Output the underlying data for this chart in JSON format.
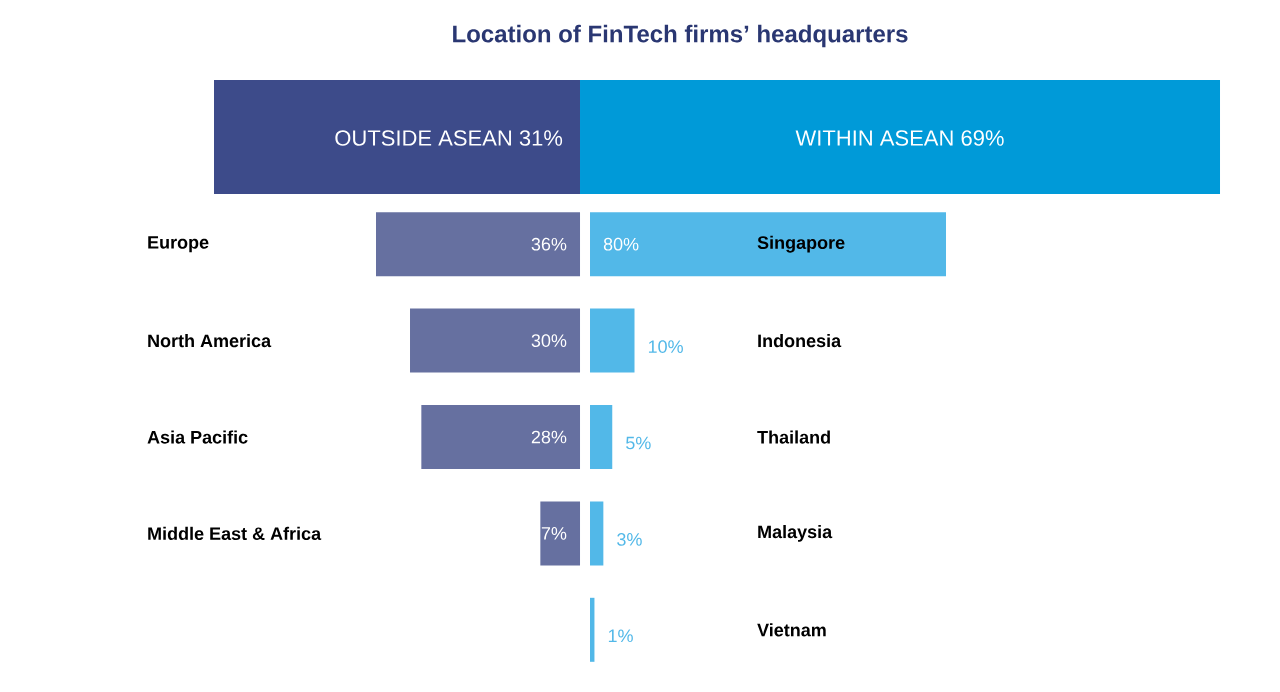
{
  "chart_data": [
    {
      "type": "other",
      "title": "Location of FinTech firms’ headquarters",
      "annotations": [
        "OUTSIDE ASEAN 31%",
        "WITHIN ASEAN 69%"
      ],
      "colors": [
        "#3d4b8a",
        "#009ad8"
      ]
    },
    {
      "type": "bar",
      "orientation": "horizontal",
      "categories": [
        "Europe",
        "North America",
        "Asia Pacific",
        "Middle East & Africa"
      ],
      "values": [
        36,
        30,
        28,
        7
      ],
      "value_labels": [
        "36%",
        "30%",
        "28%",
        "7%"
      ],
      "color": "#6670a0"
    },
    {
      "type": "bar",
      "orientation": "horizontal",
      "categories": [
        "Singapore",
        "Indonesia",
        "Thailand",
        "Malaysia",
        "Vietnam"
      ],
      "values": [
        80,
        10,
        5,
        3,
        1
      ],
      "value_labels": [
        "80%",
        "10%",
        "5%",
        "3%",
        "1%"
      ],
      "color": "#52b8e8"
    }
  ]
}
